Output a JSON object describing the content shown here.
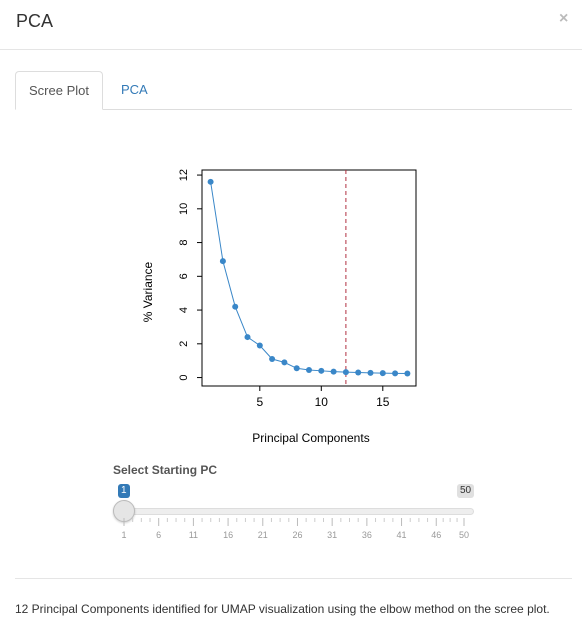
{
  "modal": {
    "title": "PCA",
    "close_symbol": "×"
  },
  "tabs": [
    {
      "label": "Scree Plot",
      "active": true
    },
    {
      "label": "PCA",
      "active": false
    }
  ],
  "chart_data": {
    "type": "line",
    "xlabel": "Principal Components",
    "ylabel": "% Variance",
    "xlim": [
      0.3,
      17.7
    ],
    "ylim": [
      -0.5,
      12.3
    ],
    "x_ticks": [
      5,
      10,
      15
    ],
    "y_ticks": [
      0,
      2,
      4,
      6,
      8,
      10,
      12
    ],
    "x": [
      1,
      2,
      3,
      4,
      5,
      6,
      7,
      8,
      9,
      10,
      11,
      12,
      13,
      14,
      15,
      16,
      17
    ],
    "y": [
      11.6,
      6.9,
      4.2,
      2.4,
      1.9,
      1.1,
      0.9,
      0.55,
      0.45,
      0.4,
      0.35,
      0.32,
      0.3,
      0.28,
      0.26,
      0.25,
      0.24
    ],
    "vline_x": 12,
    "colors": {
      "points": "#3a87c8",
      "line": "#3a87c8",
      "vline": "#b03040"
    }
  },
  "slider": {
    "label": "Select Starting PC",
    "value": 1,
    "min": 1,
    "max": 50,
    "value_label": "1",
    "max_label": "50",
    "tick_labels": [
      "1",
      "6",
      "11",
      "16",
      "21",
      "26",
      "31",
      "36",
      "41",
      "46",
      "50"
    ],
    "colors": {
      "handle_badge": "#337ab7"
    }
  },
  "footer": {
    "text": "12 Principal Components identified for UMAP visualization using the elbow method on the scree plot."
  }
}
